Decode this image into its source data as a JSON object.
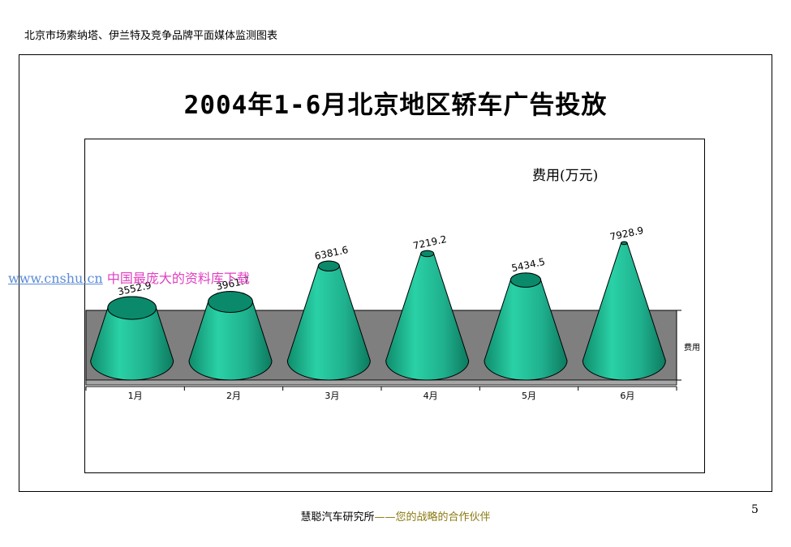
{
  "header": {
    "text": "北京市场索纳塔、伊兰特及竞争品牌平面媒体监测图表"
  },
  "watermark": {
    "url": "www.cnshu.cn",
    "text": "中国最庞大的资料库下载"
  },
  "footer": {
    "org": "慧聪汽车研究所",
    "dash": "——",
    "slogan": "您的战略的合作伙伴"
  },
  "page_number": "5",
  "colors": {
    "cone": "#1fb08e",
    "cone_top": "#0a8a6a",
    "wall": "#7f7f7f",
    "floor": "#a6a6a6"
  },
  "chart_data": {
    "type": "bar",
    "shape": "cone",
    "title": "2004年1-6月北京地区轿车广告投放",
    "value_axis_label": "费用(万元)",
    "categories": [
      "1月",
      "2月",
      "3月",
      "4月",
      "5月",
      "6月"
    ],
    "series": [
      {
        "name": "费用",
        "values": [
          3552.9,
          3961.7,
          6381.6,
          7219.2,
          5434.5,
          7928.9
        ]
      }
    ],
    "data_labels": [
      "3552.9",
      "3961.7",
      "6381.6",
      "7219.2",
      "5434.5",
      "7928.9"
    ],
    "legend": "right",
    "grid": false
  }
}
